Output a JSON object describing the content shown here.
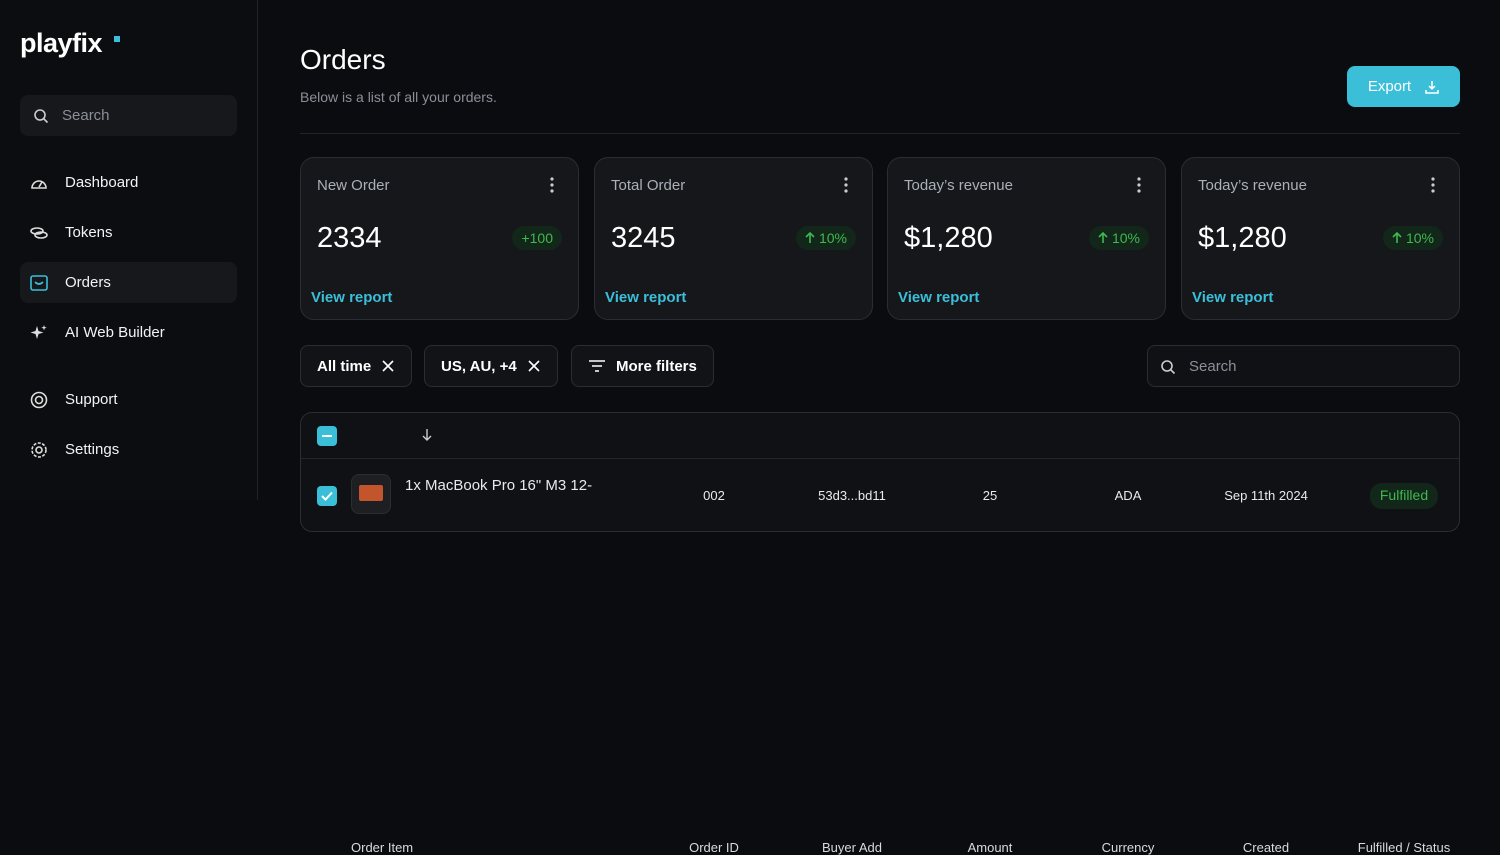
{
  "sidebar": {
    "logo": "playfix",
    "search_placeholder": "Search",
    "nav": [
      "Dashboard",
      "Tokens",
      "Orders",
      "AI Web Builder"
    ],
    "nav_bottom": [
      "Support",
      "Settings"
    ]
  },
  "header": {
    "title": "Orders",
    "subtitle": "Below is a list of all your orders.",
    "export": "Export"
  },
  "stats": [
    {
      "label": "New Order",
      "value": "2334",
      "change": "+100",
      "link": "View report"
    },
    {
      "label": "Total Order",
      "value": "3245",
      "change": "10%",
      "link": "View report"
    },
    {
      "label": "Today’s revenue",
      "value": "$1,280",
      "change": "10%",
      "link": "View report"
    },
    {
      "label": "Today’s revenue",
      "value": "$1,280",
      "change": "10%",
      "link": "View report"
    }
  ],
  "filters": [
    "All time",
    "US, AU, +4",
    "More filters"
  ],
  "search_placeholder": "Search",
  "table": {
    "columns": [
      "Order Item",
      "Order ID",
      "Buyer Add",
      "Amount",
      "Currency",
      "Created",
      "Fulfilled / Status"
    ],
    "rows": [
      [
        "1x MacBook Pro 16\" M3 12-",
        "002",
        "53d3...bd11",
        "25",
        "ADA",
        "Sep 11th 2024",
        "Fulfilled"
      ]
    ]
  }
}
